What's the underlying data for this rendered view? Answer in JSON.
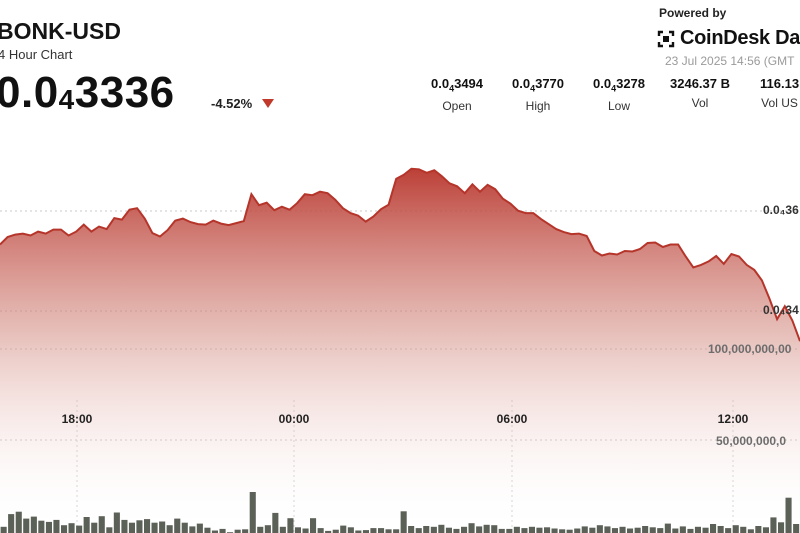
{
  "header": {
    "pair": "BONK-USD",
    "subtitle": "4 Hour Chart",
    "price_main": "0.0",
    "price_sub": "4",
    "price_tail": "3336",
    "change": "-4.52%"
  },
  "branding": {
    "powered_by": "Powered by",
    "logo_text": "CoinDesk Data",
    "timestamp": "23 Jul 2025 14:56 (GMT"
  },
  "stats": [
    {
      "value_main": "0.0",
      "value_sub": "4",
      "value_tail": "3494",
      "label": "Open"
    },
    {
      "value_main": "0.0",
      "value_sub": "4",
      "value_tail": "3770",
      "label": "High"
    },
    {
      "value_main": "0.0",
      "value_sub": "4",
      "value_tail": "3278",
      "label": "Low"
    },
    {
      "value_main": "3246.37 B",
      "value_sub": "",
      "value_tail": "",
      "label": "Vol"
    },
    {
      "value_main": "116.13",
      "value_sub": "",
      "value_tail": "",
      "label": "Vol US"
    }
  ],
  "colors": {
    "line": "#b5352b",
    "area_top": "#c0433a",
    "bar": "#5c6158",
    "down": "#c0392b"
  },
  "chart_data": {
    "type": "area",
    "title": "BONK-USD",
    "x_ticks": [
      "18:00",
      "00:00",
      "06:00",
      "12:00"
    ],
    "price_axis_labels": [
      "0.0₄36",
      "0.0₄34"
    ],
    "volume_axis_labels": [
      "100,000,000,00",
      "50,000,000,0"
    ],
    "price_min": 3.278e-05,
    "price_max": 3.77e-05,
    "price_series": [
      3.53e-05,
      3.545e-05,
      3.55e-05,
      3.552e-05,
      3.548e-05,
      3.556e-05,
      3.552e-05,
      3.56e-05,
      3.56e-05,
      3.548e-05,
      3.556e-05,
      3.57e-05,
      3.556e-05,
      3.566e-05,
      3.561e-05,
      3.583e-05,
      3.58e-05,
      3.6e-05,
      3.603e-05,
      3.582e-05,
      3.553e-05,
      3.546e-05,
      3.559e-05,
      3.578e-05,
      3.582e-05,
      3.575e-05,
      3.571e-05,
      3.57e-05,
      3.578e-05,
      3.572e-05,
      3.569e-05,
      3.573e-05,
      3.577e-05,
      3.631e-05,
      3.609e-05,
      3.614e-05,
      3.599e-05,
      3.606e-05,
      3.6e-05,
      3.613e-05,
      3.631e-05,
      3.629e-05,
      3.636e-05,
      3.633e-05,
      3.62e-05,
      3.603e-05,
      3.593e-05,
      3.588e-05,
      3.576e-05,
      3.586e-05,
      3.601e-05,
      3.61e-05,
      3.662e-05,
      3.67e-05,
      3.682e-05,
      3.681e-05,
      3.674e-05,
      3.679e-05,
      3.667e-05,
      3.653e-05,
      3.647e-05,
      3.633e-05,
      3.651e-05,
      3.636e-05,
      3.65e-05,
      3.641e-05,
      3.622e-05,
      3.612e-05,
      3.598e-05,
      3.593e-05,
      3.593e-05,
      3.581e-05,
      3.571e-05,
      3.561e-05,
      3.555e-05,
      3.551e-05,
      3.552e-05,
      3.547e-05,
      3.517e-05,
      3.508e-05,
      3.512e-05,
      3.51e-05,
      3.517e-05,
      3.516e-05,
      3.521e-05,
      3.533e-05,
      3.534e-05,
      3.525e-05,
      3.53e-05,
      3.53e-05,
      3.506e-05,
      3.484e-05,
      3.489e-05,
      3.496e-05,
      3.507e-05,
      3.491e-05,
      3.511e-05,
      3.506e-05,
      3.489e-05,
      3.479e-05,
      3.458e-05,
      3.421e-05,
      3.38e-05,
      3.406e-05,
      3.377e-05,
      3.336e-05
    ],
    "volume_max": 125000000000,
    "volume_series": [
      1500000000,
      4600000000,
      5200000000,
      3500000000,
      4000000000,
      3000000000,
      2700000000,
      3200000000,
      1900000000,
      2400000000,
      1800000000,
      3900000000,
      2500000000,
      4100000000,
      1400000000,
      5000000000,
      3200000000,
      2500000000,
      3100000000,
      3400000000,
      2500000000,
      2800000000,
      1900000000,
      3500000000,
      2500000000,
      1600000000,
      2300000000,
      1300000000,
      600000000,
      1000000000,
      200000000,
      800000000,
      900000000,
      10000000000,
      1500000000,
      1900000000,
      4900000000,
      1500000000,
      3600000000,
      1400000000,
      1100000000,
      3600000000,
      1200000000,
      500000000,
      800000000,
      1800000000,
      1400000000,
      600000000,
      700000000,
      1200000000,
      1200000000,
      900000000,
      900000000,
      5300000000,
      1700000000,
      1200000000,
      1700000000,
      1500000000,
      2000000000,
      1300000000,
      1000000000,
      1500000000,
      2400000000,
      1600000000,
      2000000000,
      1900000000,
      1000000000,
      1000000000,
      1500000000,
      1200000000,
      1500000000,
      1300000000,
      1400000000,
      1100000000,
      900000000,
      800000000,
      1100000000,
      1600000000,
      1300000000,
      1900000000,
      1600000000,
      1200000000,
      1500000000,
      1100000000,
      1300000000,
      1700000000,
      1400000000,
      1200000000,
      2300000000,
      1100000000,
      1600000000,
      1000000000,
      1500000000,
      1300000000,
      2200000000,
      1700000000,
      1200000000,
      1900000000,
      1500000000,
      900000000,
      1700000000,
      1400000000,
      3800000000,
      2600000000,
      8600000000,
      2200000000
    ]
  }
}
